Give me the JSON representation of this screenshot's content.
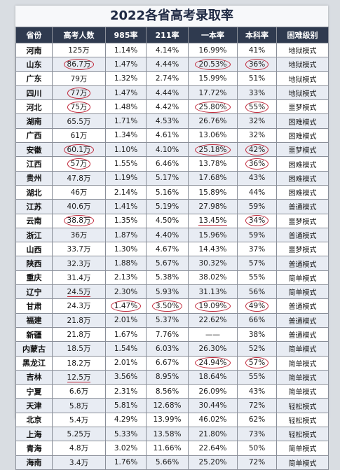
{
  "title": "2022各省高考录取率",
  "headers": [
    "省份",
    "高考人数",
    "985率",
    "211率",
    "一本率",
    "本科率",
    "困难级别"
  ],
  "rows": [
    [
      "河南",
      "125万",
      "1.14%",
      "4.14%",
      "16.99%",
      "41%",
      "地狱模式"
    ],
    [
      "山东",
      "86.7万",
      "1.47%",
      "4.44%",
      "20.53%",
      "36%",
      "地狱模式"
    ],
    [
      "广东",
      "79万",
      "1.32%",
      "2.74%",
      "15.99%",
      "51%",
      "地狱模式"
    ],
    [
      "四川",
      "77万",
      "1.47%",
      "4.44%",
      "17.72%",
      "33%",
      "地狱模式"
    ],
    [
      "河北",
      "75万",
      "1.48%",
      "4.42%",
      "25.80%",
      "55%",
      "噩梦模式"
    ],
    [
      "湖南",
      "65.5万",
      "1.71%",
      "4.53%",
      "26.76%",
      "32%",
      "困难模式"
    ],
    [
      "广西",
      "61万",
      "1.34%",
      "4.61%",
      "13.06%",
      "32%",
      "困难模式"
    ],
    [
      "安徽",
      "60.1万",
      "1.10%",
      "4.10%",
      "25.18%",
      "42%",
      "噩梦模式"
    ],
    [
      "江西",
      "57万",
      "1.55%",
      "6.46%",
      "13.78%",
      "36%",
      "困难模式"
    ],
    [
      "贵州",
      "47.8万",
      "1.19%",
      "5.17%",
      "17.68%",
      "43%",
      "困难模式"
    ],
    [
      "湖北",
      "46万",
      "2.14%",
      "5.16%",
      "15.89%",
      "44%",
      "困难模式"
    ],
    [
      "江苏",
      "40.6万",
      "1.41%",
      "5.19%",
      "27.98%",
      "59%",
      "普通模式"
    ],
    [
      "云南",
      "38.8万",
      "1.35%",
      "4.50%",
      "13.45%",
      "34%",
      "噩梦模式"
    ],
    [
      "浙江",
      "36万",
      "1.87%",
      "4.40%",
      "15.96%",
      "59%",
      "普通模式"
    ],
    [
      "山西",
      "33.7万",
      "1.30%",
      "4.67%",
      "14.43%",
      "37%",
      "噩梦模式"
    ],
    [
      "陕西",
      "32.3万",
      "1.88%",
      "5.67%",
      "30.32%",
      "57%",
      "普通模式"
    ],
    [
      "重庆",
      "31.4万",
      "2.13%",
      "5.38%",
      "38.02%",
      "55%",
      "简单模式"
    ],
    [
      "辽宁",
      "24.5万",
      "2.30%",
      "5.93%",
      "31.13%",
      "56%",
      "简单模式"
    ],
    [
      "甘肃",
      "24.3万",
      "1.47%",
      "3.50%",
      "19.09%",
      "49%",
      "普通模式"
    ],
    [
      "福建",
      "21.8万",
      "2.01%",
      "5.37%",
      "22.62%",
      "66%",
      "普通模式"
    ],
    [
      "新疆",
      "21.8万",
      "1.67%",
      "7.76%",
      "——",
      "38%",
      "普通模式"
    ],
    [
      "内蒙古",
      "18.5万",
      "1.54%",
      "6.03%",
      "26.30%",
      "52%",
      "简单模式"
    ],
    [
      "黑龙江",
      "18.2万",
      "2.01%",
      "6.67%",
      "24.94%",
      "57%",
      "简单模式"
    ],
    [
      "吉林",
      "12.5万",
      "3.56%",
      "8.95%",
      "18.64%",
      "55%",
      "简单模式"
    ],
    [
      "宁夏",
      "6.6万",
      "2.31%",
      "8.56%",
      "26.09%",
      "43%",
      "简单模式"
    ],
    [
      "天津",
      "5.8万",
      "5.81%",
      "12.68%",
      "30.44%",
      "72%",
      "轻松模式"
    ],
    [
      "北京",
      "5.4万",
      "4.29%",
      "13.99%",
      "46.02%",
      "62%",
      "轻松模式"
    ],
    [
      "上海",
      "5.25万",
      "5.33%",
      "13.58%",
      "21.80%",
      "73%",
      "轻松模式"
    ],
    [
      "青海",
      "4.8万",
      "3.02%",
      "11.66%",
      "22.64%",
      "50%",
      "简单模式"
    ],
    [
      "海南",
      "3.4万",
      "1.76%",
      "5.66%",
      "25.20%",
      "72%",
      "简单模式"
    ]
  ],
  "circled_cells": [
    [
      1,
      1
    ],
    [
      1,
      4
    ],
    [
      1,
      5
    ],
    [
      3,
      1
    ],
    [
      4,
      1
    ],
    [
      4,
      4
    ],
    [
      4,
      5
    ],
    [
      7,
      1
    ],
    [
      7,
      4
    ],
    [
      7,
      5
    ],
    [
      8,
      1
    ],
    [
      8,
      5
    ],
    [
      12,
      1
    ],
    [
      12,
      5
    ],
    [
      18,
      2
    ],
    [
      18,
      3
    ],
    [
      18,
      4
    ],
    [
      18,
      5
    ],
    [
      22,
      4
    ],
    [
      22,
      5
    ]
  ],
  "underlined_cells": [
    [
      12,
      4
    ],
    [
      17,
      1
    ],
    [
      23,
      1
    ]
  ],
  "colors": {
    "header_bg": "#2f3a4f",
    "circle": "#c0283a",
    "row_alt": "#e8ecf3"
  }
}
